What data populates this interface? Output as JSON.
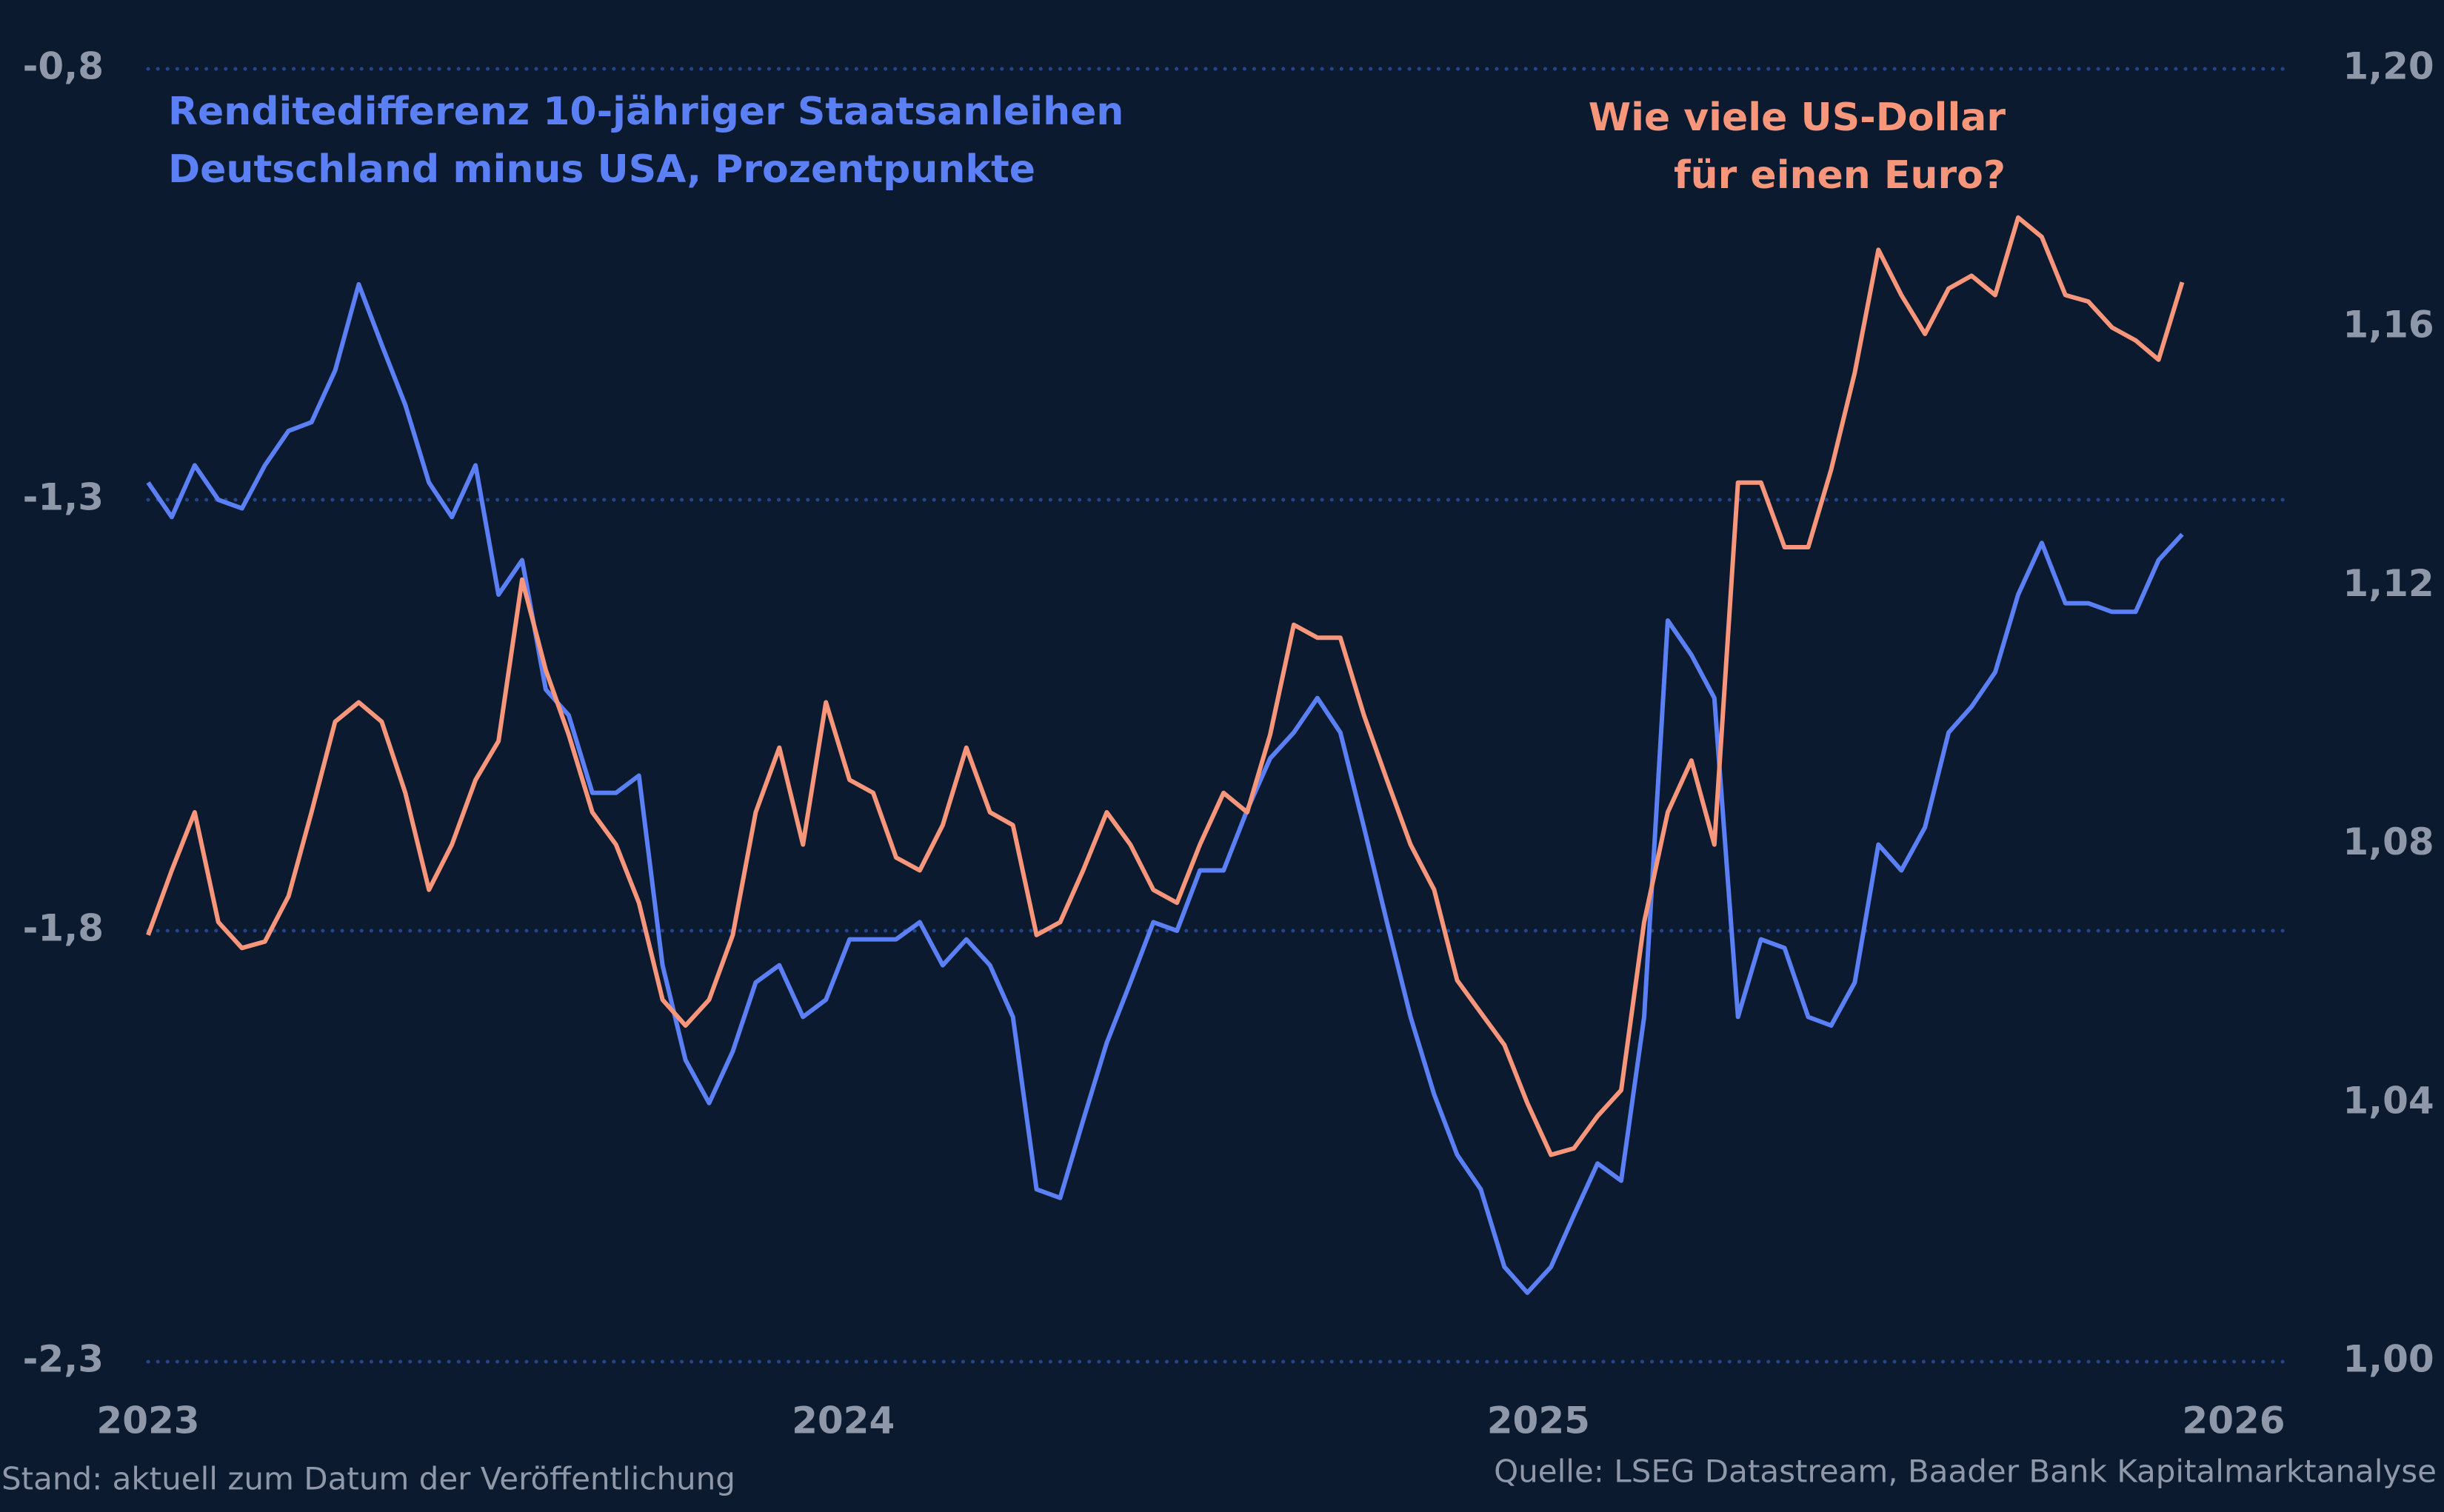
{
  "chart_data": {
    "type": "line",
    "x": [
      2023.0,
      2023.034,
      2023.067,
      2023.101,
      2023.135,
      2023.168,
      2023.202,
      2023.235,
      2023.269,
      2023.303,
      2023.336,
      2023.37,
      2023.404,
      2023.437,
      2023.471,
      2023.504,
      2023.538,
      2023.572,
      2023.605,
      2023.639,
      2023.673,
      2023.706,
      2023.74,
      2023.773,
      2023.807,
      2023.841,
      2023.874,
      2023.908,
      2023.942,
      2023.975,
      2024.009,
      2024.043,
      2024.076,
      2024.11,
      2024.143,
      2024.177,
      2024.211,
      2024.244,
      2024.278,
      2024.312,
      2024.345,
      2024.379,
      2024.413,
      2024.446,
      2024.48,
      2024.513,
      2024.547,
      2024.581,
      2024.614,
      2024.648,
      2024.682,
      2024.715,
      2024.749,
      2024.782,
      2024.816,
      2024.85,
      2024.883,
      2024.917,
      2024.951,
      2024.984,
      2025.018,
      2025.051,
      2025.085,
      2025.119,
      2025.152,
      2025.186,
      2025.22,
      2025.253,
      2025.287,
      2025.32,
      2025.354,
      2025.388,
      2025.421,
      2025.455,
      2025.489,
      2025.522,
      2025.556,
      2025.59,
      2025.623,
      2025.657,
      2025.69,
      2025.724,
      2025.758,
      2025.791,
      2025.825,
      2025.859,
      2025.892,
      2025.926
    ],
    "series": [
      {
        "label": [
          "Renditedifferenz 10-jähriger Staatsanleihen",
          "Deutschland minus USA, Prozentpunkte"
        ],
        "color": "#5b7ff5",
        "axis": "y",
        "values": [
          -1.28,
          -1.32,
          -1.26,
          -1.3,
          -1.31,
          -1.26,
          -1.22,
          -1.21,
          -1.15,
          -1.05,
          -1.12,
          -1.19,
          -1.28,
          -1.32,
          -1.26,
          -1.41,
          -1.37,
          -1.52,
          -1.55,
          -1.64,
          -1.64,
          -1.62,
          -1.84,
          -1.95,
          -2.0,
          -1.94,
          -1.86,
          -1.84,
          -1.9,
          -1.88,
          -1.81,
          -1.81,
          -1.81,
          -1.79,
          -1.84,
          -1.81,
          -1.84,
          -1.9,
          -2.1,
          -2.11,
          -2.02,
          -1.93,
          -1.86,
          -1.79,
          -1.8,
          -1.73,
          -1.73,
          -1.66,
          -1.6,
          -1.57,
          -1.53,
          -1.57,
          -1.68,
          -1.79,
          -1.9,
          -1.99,
          -2.06,
          -2.1,
          -2.19,
          -2.22,
          -2.19,
          -2.13,
          -2.07,
          -2.09,
          -1.9,
          -1.44,
          -1.48,
          -1.53,
          -1.9,
          -1.81,
          -1.82,
          -1.9,
          -1.91,
          -1.86,
          -1.7,
          -1.73,
          -1.68,
          -1.57,
          -1.54,
          -1.5,
          -1.41,
          -1.35,
          -1.42,
          -1.42,
          -1.43,
          -1.43,
          -1.37,
          -1.34
        ]
      },
      {
        "label": [
          "Wie viele US-Dollar",
          "für einen Euro?"
        ],
        "color": "#f7967a",
        "axis": "y2",
        "values": [
          1.066,
          1.076,
          1.085,
          1.068,
          1.064,
          1.065,
          1.072,
          1.085,
          1.099,
          1.102,
          1.099,
          1.088,
          1.073,
          1.08,
          1.09,
          1.096,
          1.121,
          1.107,
          1.097,
          1.085,
          1.08,
          1.071,
          1.056,
          1.052,
          1.056,
          1.066,
          1.085,
          1.095,
          1.08,
          1.102,
          1.09,
          1.088,
          1.078,
          1.076,
          1.083,
          1.095,
          1.085,
          1.083,
          1.066,
          1.068,
          1.076,
          1.085,
          1.08,
          1.073,
          1.071,
          1.08,
          1.088,
          1.085,
          1.097,
          1.114,
          1.112,
          1.112,
          1.1,
          1.09,
          1.08,
          1.073,
          1.059,
          1.054,
          1.049,
          1.04,
          1.032,
          1.033,
          1.038,
          1.042,
          1.068,
          1.085,
          1.093,
          1.08,
          1.136,
          1.136,
          1.126,
          1.126,
          1.138,
          1.153,
          1.172,
          1.165,
          1.159,
          1.166,
          1.168,
          1.165,
          1.177,
          1.174,
          1.165,
          1.164,
          1.16,
          1.158,
          1.155,
          1.167
        ]
      }
    ],
    "xlim": [
      2023,
      2026
    ],
    "xticks": [
      2023,
      2024,
      2025,
      2026
    ],
    "ylim": [
      -2.3,
      -0.8
    ],
    "yticks": [
      {
        "value": -0.8,
        "label": "-0,8"
      },
      {
        "value": -1.3,
        "label": "-1,3"
      },
      {
        "value": -1.8,
        "label": "-1,8"
      },
      {
        "value": -2.3,
        "label": "-2,3"
      }
    ],
    "y2lim": [
      1.0,
      1.2
    ],
    "y2ticks": [
      {
        "value": 1.2,
        "label": "1,20"
      },
      {
        "value": 1.16,
        "label": "1,16"
      },
      {
        "value": 1.12,
        "label": "1,12"
      },
      {
        "value": 1.08,
        "label": "1,08"
      },
      {
        "value": 1.04,
        "label": "1,04"
      },
      {
        "value": 1.0,
        "label": "1,00"
      }
    ],
    "grid": true,
    "grid_color": "#24458a",
    "footnote_left": "Stand: aktuell zum Datum der Veröffentlichung",
    "footnote_right": "Quelle: LSEG Datastream, Baader Bank Kapitalmarktanalyse"
  }
}
